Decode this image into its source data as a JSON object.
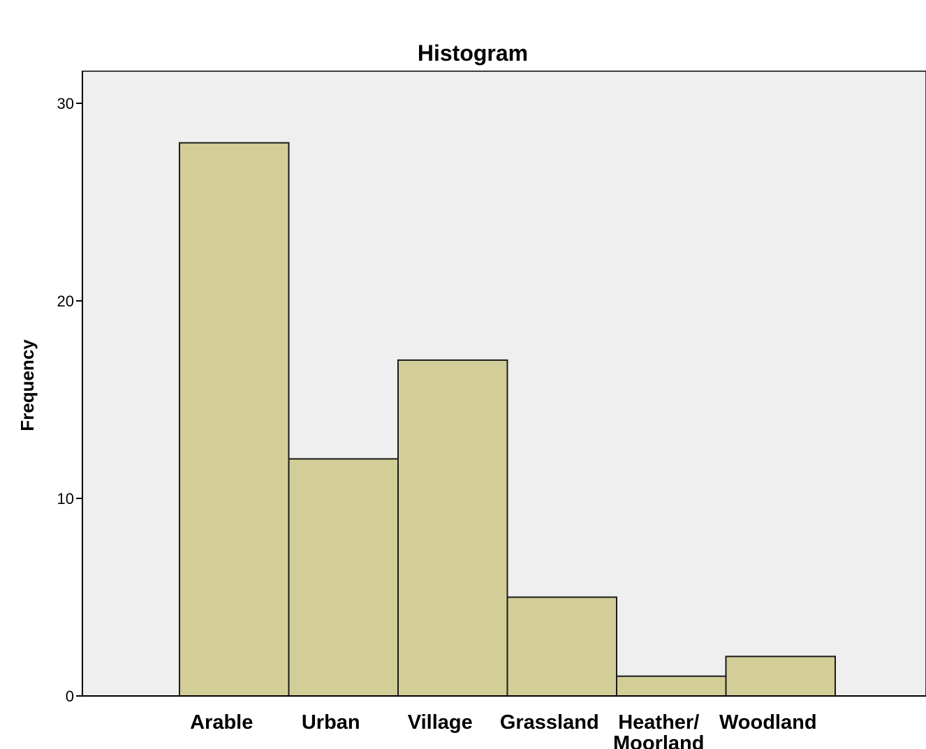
{
  "colors": {
    "plot_background": "#EFEFEF",
    "bar_fill": "#D3CE97",
    "bar_stroke": "#1A1A1A",
    "axis": "#000000",
    "text": "#000000"
  },
  "chart_data": {
    "type": "bar",
    "title": "Histogram",
    "xlabel": "",
    "ylabel": "Frequency",
    "categories": [
      "Arable",
      "Urban",
      "Village",
      "Grassland",
      "Heather/ Moorland",
      "Woodland"
    ],
    "category_label_lines": [
      [
        "Arable"
      ],
      [
        "Urban"
      ],
      [
        "Village"
      ],
      [
        "Grassland"
      ],
      [
        "Heather/",
        "Moorland"
      ],
      [
        "Woodland"
      ]
    ],
    "values": [
      28,
      12,
      17,
      5,
      1,
      2
    ],
    "ylim": [
      0,
      31.6
    ],
    "yticks": [
      0,
      10,
      20,
      30
    ],
    "grid": false,
    "legend": "none"
  }
}
